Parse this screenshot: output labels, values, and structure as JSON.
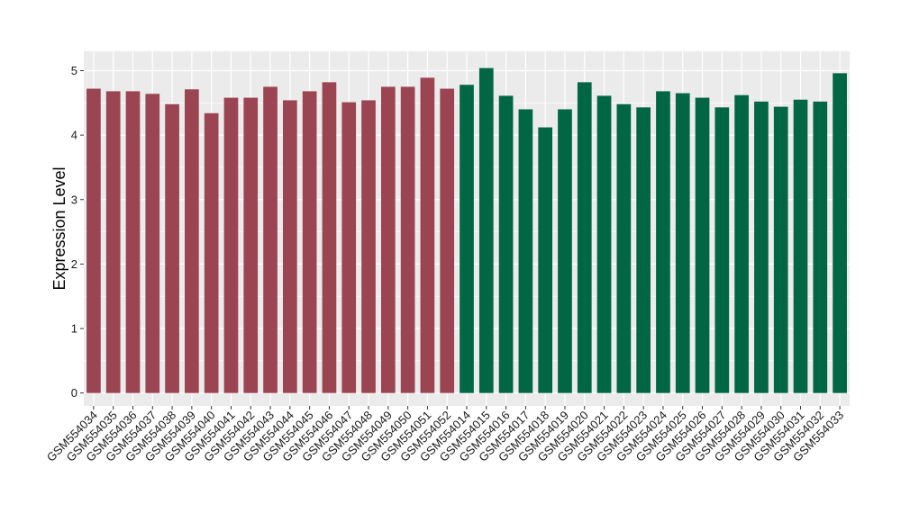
{
  "chart_data": {
    "type": "bar",
    "title": "",
    "xlabel": "",
    "ylabel": "Expression Level",
    "ylim": [
      -0.2,
      5.3
    ],
    "yticks": [
      0,
      1,
      2,
      3,
      4,
      5
    ],
    "grid": true,
    "legend": "none",
    "colors": {
      "group_a": "#9b4452",
      "group_b": "#006644",
      "panel": "#ebebeb",
      "gridline": "#ffffff"
    },
    "categories": [
      "GSM554034",
      "GSM554035",
      "GSM554036",
      "GSM554037",
      "GSM554038",
      "GSM554039",
      "GSM554040",
      "GSM554041",
      "GSM554042",
      "GSM554043",
      "GSM554044",
      "GSM554045",
      "GSM554046",
      "GSM554047",
      "GSM554048",
      "GSM554049",
      "GSM554050",
      "GSM554051",
      "GSM554052",
      "GSM554014",
      "GSM554015",
      "GSM554016",
      "GSM554017",
      "GSM554018",
      "GSM554019",
      "GSM554020",
      "GSM554021",
      "GSM554022",
      "GSM554023",
      "GSM554024",
      "GSM554025",
      "GSM554026",
      "GSM554027",
      "GSM554028",
      "GSM554029",
      "GSM554030",
      "GSM554031",
      "GSM554032",
      "GSM554033"
    ],
    "values": [
      4.72,
      4.68,
      4.68,
      4.64,
      4.48,
      4.71,
      4.34,
      4.58,
      4.58,
      4.75,
      4.54,
      4.68,
      4.82,
      4.51,
      4.54,
      4.75,
      4.75,
      4.89,
      4.72,
      4.78,
      5.04,
      4.61,
      4.4,
      4.12,
      4.4,
      4.82,
      4.61,
      4.48,
      4.43,
      4.68,
      4.65,
      4.58,
      4.43,
      4.62,
      4.52,
      4.44,
      4.55,
      4.52,
      4.96
    ],
    "groups": [
      "a",
      "a",
      "a",
      "a",
      "a",
      "a",
      "a",
      "a",
      "a",
      "a",
      "a",
      "a",
      "a",
      "a",
      "a",
      "a",
      "a",
      "a",
      "a",
      "b",
      "b",
      "b",
      "b",
      "b",
      "b",
      "b",
      "b",
      "b",
      "b",
      "b",
      "b",
      "b",
      "b",
      "b",
      "b",
      "b",
      "b",
      "b",
      "b"
    ]
  }
}
